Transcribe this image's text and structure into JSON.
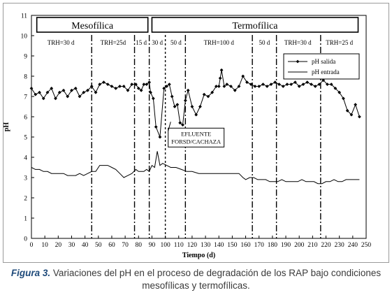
{
  "chart_data": {
    "type": "line",
    "xlabel": "Tiempo (d)",
    "ylabel": "pH",
    "xlim": [
      0,
      250
    ],
    "ylim": [
      0,
      11
    ],
    "xticks": [
      0,
      10,
      20,
      30,
      40,
      50,
      60,
      70,
      80,
      90,
      100,
      110,
      120,
      130,
      140,
      150,
      160,
      170,
      180,
      190,
      200,
      210,
      220,
      230,
      240,
      250
    ],
    "yticks": [
      0,
      1,
      2,
      3,
      4,
      5,
      6,
      7,
      8,
      9,
      10,
      11
    ],
    "grid": false,
    "legend_position": "top-right",
    "phases": [
      {
        "label": "Mesofílica",
        "x_start": 4,
        "x_end": 87
      },
      {
        "label": "Termofílica",
        "x_start": 90,
        "x_end": 244
      }
    ],
    "period_dividers": [
      45,
      77,
      88,
      100,
      115,
      165,
      183,
      216
    ],
    "period_labels": [
      {
        "label": "TRH=30 d",
        "x": 22
      },
      {
        "label": "TRH=25d",
        "x": 61
      },
      {
        "label": "15 d",
        "x": 82
      },
      {
        "label": "30 d",
        "x": 94
      },
      {
        "label": "50 d",
        "x": 108
      },
      {
        "label": "TRH=100 d",
        "x": 140
      },
      {
        "label": "50 d",
        "x": 174
      },
      {
        "label": "TRH=30 d",
        "x": 199
      },
      {
        "label": "TRH=25 d",
        "x": 230
      }
    ],
    "annotation": {
      "lines": [
        "EFLUENTE",
        "FORSD/CACHAZA"
      ],
      "x": 123,
      "y": 5.3,
      "arrow_to": [
        104,
        5.75
      ]
    },
    "series": [
      {
        "name": "pH salida",
        "marker": "diamond",
        "x": [
          0,
          3,
          6,
          9,
          12,
          15,
          18,
          21,
          24,
          27,
          30,
          33,
          36,
          39,
          42,
          45,
          48,
          51,
          54,
          57,
          60,
          63,
          66,
          69,
          72,
          75,
          78,
          80,
          82,
          84,
          86,
          88,
          89,
          91,
          93,
          96,
          99,
          101,
          103,
          105,
          107,
          109,
          111,
          113,
          115,
          117,
          120,
          123,
          126,
          129,
          132,
          135,
          138,
          140,
          141,
          142,
          144,
          146,
          149,
          152,
          155,
          158,
          161,
          164,
          167,
          170,
          173,
          176,
          179,
          182,
          185,
          188,
          191,
          194,
          197,
          200,
          203,
          206,
          209,
          212,
          215,
          218,
          221,
          224,
          227,
          230,
          233,
          236,
          239,
          242,
          245
        ],
        "y": [
          7.4,
          7.1,
          7.2,
          6.9,
          7.2,
          7.4,
          6.9,
          7.2,
          7.3,
          7.0,
          7.3,
          7.4,
          7.0,
          7.2,
          7.3,
          7.5,
          7.2,
          7.6,
          7.7,
          7.6,
          7.5,
          7.4,
          7.5,
          7.5,
          7.3,
          7.6,
          7.6,
          7.4,
          7.3,
          7.6,
          7.6,
          7.7,
          7.2,
          6.9,
          5.5,
          5.0,
          7.4,
          7.5,
          7.6,
          7.0,
          6.5,
          6.6,
          5.7,
          5.6,
          6.8,
          7.3,
          6.5,
          6.1,
          6.5,
          7.1,
          7.0,
          7.2,
          7.5,
          7.5,
          7.9,
          8.3,
          7.5,
          7.6,
          7.5,
          7.3,
          7.5,
          8.0,
          7.7,
          7.6,
          7.5,
          7.5,
          7.6,
          7.5,
          7.6,
          7.7,
          7.6,
          7.5,
          7.6,
          7.6,
          7.7,
          7.5,
          7.6,
          7.7,
          7.6,
          7.5,
          7.6,
          7.8,
          7.6,
          7.6,
          7.4,
          7.2,
          6.9,
          6.3,
          6.1,
          6.6,
          6.0
        ]
      },
      {
        "name": "pH entrada",
        "marker": "none",
        "x": [
          0,
          3,
          6,
          9,
          12,
          15,
          18,
          21,
          24,
          27,
          30,
          33,
          36,
          39,
          42,
          45,
          48,
          51,
          54,
          57,
          60,
          63,
          66,
          69,
          72,
          75,
          78,
          80,
          82,
          84,
          86,
          88,
          90,
          92,
          94,
          96,
          98,
          101,
          104,
          108,
          112,
          116,
          120,
          125,
          130,
          135,
          140,
          145,
          150,
          155,
          158,
          160,
          163,
          166,
          169,
          172,
          175,
          178,
          181,
          184,
          187,
          190,
          193,
          196,
          199,
          202,
          205,
          208,
          211,
          214,
          217,
          220,
          223,
          226,
          229,
          232,
          235,
          238,
          241,
          245
        ],
        "y": [
          3.5,
          3.4,
          3.4,
          3.3,
          3.3,
          3.2,
          3.2,
          3.2,
          3.2,
          3.1,
          3.1,
          3.1,
          3.2,
          3.1,
          3.2,
          3.3,
          3.3,
          3.6,
          3.6,
          3.6,
          3.5,
          3.4,
          3.2,
          3.0,
          3.1,
          3.2,
          3.4,
          3.3,
          3.3,
          3.3,
          3.4,
          3.3,
          3.6,
          3.5,
          4.3,
          3.6,
          3.7,
          3.6,
          3.5,
          3.5,
          3.4,
          3.3,
          3.3,
          3.2,
          3.2,
          3.2,
          3.2,
          3.2,
          3.2,
          3.2,
          3.0,
          2.9,
          3.0,
          3.0,
          2.9,
          2.9,
          2.9,
          2.8,
          2.8,
          2.8,
          2.9,
          2.8,
          2.8,
          2.8,
          2.8,
          2.9,
          2.8,
          2.8,
          2.8,
          2.7,
          2.7,
          2.8,
          2.8,
          2.9,
          2.8,
          2.8,
          2.9,
          2.9,
          2.9,
          2.9
        ]
      }
    ]
  },
  "caption": {
    "figure_label": "Figura 3.",
    "text": " Variaciones del pH en el proceso de degradación de los RAP bajo condiciones mesofílicas y termofílicas."
  }
}
